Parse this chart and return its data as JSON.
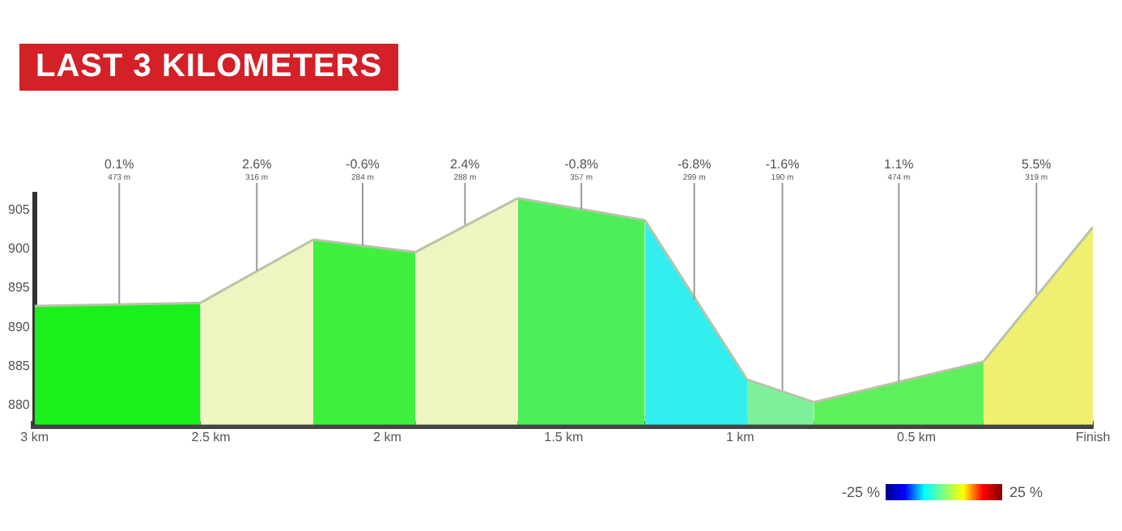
{
  "chart_data": {
    "type": "area",
    "title": "LAST 3 KILOMETERS",
    "series": [
      {
        "x": [
          3,
          2.53
        ],
        "values": [
          892.7,
          893.1
        ],
        "color": "#1cf01c"
      },
      {
        "x": [
          2.53,
          2.21
        ],
        "values": [
          893.1,
          901.2
        ],
        "color": "#eef5c0"
      },
      {
        "x": [
          2.21,
          1.92
        ],
        "values": [
          901.2,
          899.6
        ],
        "color": "#3ff03f"
      },
      {
        "x": [
          1.92,
          1.63
        ],
        "values": [
          899.6,
          906.5
        ],
        "color": "#eef5c0"
      },
      {
        "x": [
          1.63,
          1.27
        ],
        "values": [
          906.5,
          903.7
        ],
        "color": "#4cef58"
      },
      {
        "x": [
          1.27,
          0.98
        ],
        "values": [
          903.7,
          883.3
        ],
        "color": "#33eeee"
      },
      {
        "x": [
          0.98,
          0.79
        ],
        "values": [
          883.3,
          880.4
        ],
        "color": "#7ff09a"
      },
      {
        "x": [
          0.79,
          0.31
        ],
        "values": [
          880.4,
          885.6
        ],
        "color": "#5ef05a"
      },
      {
        "x": [
          0.31,
          0
        ],
        "values": [
          885.6,
          902.8
        ],
        "color": "#eff070"
      }
    ],
    "xlim": [
      3,
      0
    ],
    "xticks": [
      {
        "value": 3,
        "label": "3 km"
      },
      {
        "value": 2.5,
        "label": "2.5 km"
      },
      {
        "value": 2,
        "label": "2 km"
      },
      {
        "value": 1.5,
        "label": "1.5 km"
      },
      {
        "value": 1,
        "label": "1 km"
      },
      {
        "value": 0.5,
        "label": "0.5 km"
      },
      {
        "value": 0,
        "label": "Finish"
      }
    ],
    "ylim": [
      877.5,
      907
    ],
    "yticks": [
      880,
      885,
      890,
      895,
      900,
      905
    ],
    "annotations": [
      {
        "text": "0.1%\n473 m",
        "x": 2.76,
        "y": 893.0
      },
      {
        "text": "2.6%\n316 m",
        "x": 2.37,
        "y": 897.2
      },
      {
        "text": "-0.6%\n284 m",
        "x": 2.07,
        "y": 900.4
      },
      {
        "text": "2.4%\n288 m",
        "x": 1.78,
        "y": 903.1
      },
      {
        "text": "-0.8%\n357 m",
        "x": 1.45,
        "y": 905.1
      },
      {
        "text": "-6.8%\n299 m",
        "x": 1.13,
        "y": 893.5
      },
      {
        "text": "-1.6%\n190 m",
        "x": 0.88,
        "y": 881.9
      },
      {
        "text": "1.1%\n474 m",
        "x": 0.55,
        "y": 883.0
      },
      {
        "text": "5.5%\n319 m",
        "x": 0.16,
        "y": 894.2
      },
      "-25 %",
      "25 %"
    ],
    "grid": false,
    "legend": false,
    "marker": "none"
  }
}
